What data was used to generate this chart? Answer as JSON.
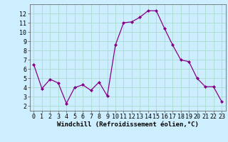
{
  "x": [
    0,
    1,
    2,
    3,
    4,
    5,
    6,
    7,
    8,
    9,
    10,
    11,
    12,
    13,
    14,
    15,
    16,
    17,
    18,
    19,
    20,
    21,
    22,
    23
  ],
  "y": [
    6.5,
    3.9,
    4.9,
    4.5,
    2.3,
    4.0,
    4.3,
    3.7,
    4.6,
    3.1,
    8.6,
    11.0,
    11.1,
    11.6,
    12.3,
    12.3,
    10.4,
    8.6,
    7.0,
    6.8,
    5.0,
    4.1,
    4.1,
    2.5
  ],
  "line_color": "#880088",
  "marker": "D",
  "markersize": 2.0,
  "linewidth": 0.9,
  "bg_color": "#cceeff",
  "grid_color": "#aaddcc",
  "xlabel": "Windchill (Refroidissement éolien,°C)",
  "xlabel_fontsize": 6.5,
  "tick_fontsize": 6,
  "xlim": [
    -0.5,
    23.5
  ],
  "ylim": [
    1.5,
    13.0
  ],
  "yticks": [
    2,
    3,
    4,
    5,
    6,
    7,
    8,
    9,
    10,
    11,
    12
  ],
  "xticks": [
    0,
    1,
    2,
    3,
    4,
    5,
    6,
    7,
    8,
    9,
    10,
    11,
    12,
    13,
    14,
    15,
    16,
    17,
    18,
    19,
    20,
    21,
    22,
    23
  ]
}
